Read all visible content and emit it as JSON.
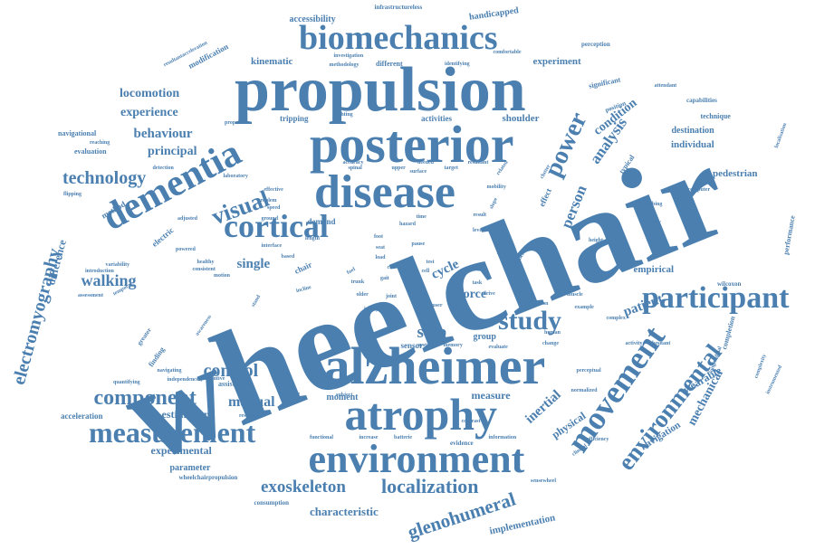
{
  "color": "#4a7fb0",
  "words": [
    {
      "text": "wheelchair",
      "weight": 100
    },
    {
      "text": "propulsion",
      "weight": 70
    },
    {
      "text": "posterior",
      "weight": 62
    },
    {
      "text": "alzheimer",
      "weight": 58
    },
    {
      "text": "disease",
      "weight": 55
    },
    {
      "text": "atrophy",
      "weight": 50
    },
    {
      "text": "dementia",
      "weight": 45
    },
    {
      "text": "environment",
      "weight": 45
    },
    {
      "text": "biomechanics",
      "weight": 40
    },
    {
      "text": "cortical",
      "weight": 38
    },
    {
      "text": "movement",
      "weight": 38
    },
    {
      "text": "participant",
      "weight": 35
    },
    {
      "text": "measurement",
      "weight": 33
    },
    {
      "text": "study",
      "weight": 30
    },
    {
      "text": "power",
      "weight": 28
    },
    {
      "text": "environmental",
      "weight": 27
    },
    {
      "text": "visual",
      "weight": 26
    },
    {
      "text": "component",
      "weight": 24
    },
    {
      "text": "localization",
      "weight": 22
    },
    {
      "text": "glenohumeral",
      "weight": 21
    },
    {
      "text": "electromyography",
      "weight": 20
    },
    {
      "text": "control",
      "weight": 20
    },
    {
      "text": "technology",
      "weight": 20
    },
    {
      "text": "exoskeleton",
      "weight": 19
    },
    {
      "text": "step",
      "weight": 19
    },
    {
      "text": "walking",
      "weight": 17
    },
    {
      "text": "analysis",
      "weight": 17
    },
    {
      "text": "person",
      "weight": 17
    },
    {
      "text": "manual",
      "weight": 16
    },
    {
      "text": "behaviour",
      "weight": 15
    },
    {
      "text": "single",
      "weight": 15
    },
    {
      "text": "cycle",
      "weight": 15
    },
    {
      "text": "force",
      "weight": 14
    },
    {
      "text": "patient",
      "weight": 15
    },
    {
      "text": "mechanical",
      "weight": 14
    },
    {
      "text": "inertial",
      "weight": 15
    },
    {
      "text": "locomotion",
      "weight": 14
    },
    {
      "text": "experience",
      "weight": 14
    },
    {
      "text": "principal",
      "weight": 14
    },
    {
      "text": "condition",
      "weight": 14
    },
    {
      "text": "characteristic",
      "weight": 13
    },
    {
      "text": "experimental",
      "weight": 12
    },
    {
      "text": "measure",
      "weight": 12
    },
    {
      "text": "difference",
      "weight": 12
    },
    {
      "text": "wearable",
      "weight": 12
    },
    {
      "text": "estimation",
      "weight": 12
    },
    {
      "text": "physical",
      "weight": 12
    },
    {
      "text": "kinematic",
      "weight": 11
    },
    {
      "text": "experiment",
      "weight": 11
    },
    {
      "text": "navigation",
      "weight": 11
    },
    {
      "text": "implementation",
      "weight": 11
    },
    {
      "text": "empirical",
      "weight": 11
    },
    {
      "text": "pedestrian",
      "weight": 11
    },
    {
      "text": "individual",
      "weight": 11
    },
    {
      "text": "shoulder",
      "weight": 11
    },
    {
      "text": "destination",
      "weight": 10
    },
    {
      "text": "accessibility",
      "weight": 10
    },
    {
      "text": "handicapped",
      "weight": 10
    },
    {
      "text": "parameter",
      "weight": 10
    },
    {
      "text": "moment",
      "weight": 10
    },
    {
      "text": "group",
      "weight": 10
    },
    {
      "text": "sensor",
      "weight": 9
    },
    {
      "text": "chair",
      "weight": 9
    },
    {
      "text": "acceleration",
      "weight": 9
    },
    {
      "text": "modification",
      "weight": 9
    },
    {
      "text": "method",
      "weight": 9
    },
    {
      "text": "electric",
      "weight": 9
    },
    {
      "text": "effect",
      "weight": 9
    },
    {
      "text": "demand",
      "weight": 9
    },
    {
      "text": "activities",
      "weight": 9
    },
    {
      "text": "tripping",
      "weight": 9
    },
    {
      "text": "evaluation",
      "weight": 8
    },
    {
      "text": "navigational",
      "weight": 8
    },
    {
      "text": "assistive",
      "weight": 8
    },
    {
      "text": "different",
      "weight": 8
    },
    {
      "text": "significant",
      "weight": 8
    },
    {
      "text": "technique",
      "weight": 8
    },
    {
      "text": "performance",
      "weight": 8
    },
    {
      "text": "completion",
      "weight": 8
    },
    {
      "text": "typical",
      "weight": 8
    },
    {
      "text": "finding",
      "weight": 8
    },
    {
      "text": "evidence",
      "weight": 7
    },
    {
      "text": "consumption",
      "weight": 7
    },
    {
      "text": "infrastructureless",
      "weight": 7
    },
    {
      "text": "perception",
      "weight": 7
    },
    {
      "text": "position",
      "weight": 7
    },
    {
      "text": "capabilities",
      "weight": 7
    },
    {
      "text": "computer",
      "weight": 6
    },
    {
      "text": "wilcoxon",
      "weight": 7
    },
    {
      "text": "wheelchairpropulsion",
      "weight": 7
    },
    {
      "text": "complexity",
      "weight": 6
    },
    {
      "text": "greater",
      "weight": 7
    },
    {
      "text": "batterie",
      "weight": 6
    },
    {
      "text": "motion",
      "weight": 6
    },
    {
      "text": "target",
      "weight": 6
    },
    {
      "text": "upper",
      "weight": 6
    },
    {
      "text": "related",
      "weight": 6
    },
    {
      "text": "healthy",
      "weight": 6
    },
    {
      "text": "joint",
      "weight": 6
    },
    {
      "text": "incline",
      "weight": 6
    },
    {
      "text": "level",
      "weight": 6
    },
    {
      "text": "time",
      "weight": 6
    },
    {
      "text": "task",
      "weight": 6
    },
    {
      "text": "clutter",
      "weight": 6
    },
    {
      "text": "assist",
      "weight": 6
    },
    {
      "text": "change",
      "weight": 6
    },
    {
      "text": "slope",
      "weight": 6
    },
    {
      "text": "flipping",
      "weight": 6
    },
    {
      "text": "reaching",
      "weight": 6
    },
    {
      "text": "speed",
      "weight": 5
    },
    {
      "text": "ground",
      "weight": 5
    },
    {
      "text": "foot",
      "weight": 5
    },
    {
      "text": "seat",
      "weight": 5
    },
    {
      "text": "load",
      "weight": 5
    },
    {
      "text": "cue",
      "weight": 5
    },
    {
      "text": "result",
      "weight": 5
    },
    {
      "text": "injury",
      "weight": 5
    },
    {
      "text": "lighting",
      "weight": 5
    },
    {
      "text": "independence",
      "weight": 5
    },
    {
      "text": "resultantacceleration",
      "weight": 4
    },
    {
      "text": "localisation",
      "weight": 4
    },
    {
      "text": "vision",
      "weight": 4
    },
    {
      "text": "human",
      "weight": 4
    },
    {
      "text": "stand",
      "weight": 4
    },
    {
      "text": "fuel",
      "weight": 4
    },
    {
      "text": "spinal",
      "weight": 4
    },
    {
      "text": "shadow",
      "weight": 4
    },
    {
      "text": "muscle",
      "weight": 4
    },
    {
      "text": "awareness",
      "weight": 4
    },
    {
      "text": "quantifying",
      "weight": 4
    },
    {
      "text": "navigating",
      "weight": 4
    },
    {
      "text": "response",
      "weight": 4
    },
    {
      "text": "contrast",
      "weight": 4
    },
    {
      "text": "functional",
      "weight": 4
    },
    {
      "text": "increase",
      "weight": 4
    },
    {
      "text": "subject",
      "weight": 4
    },
    {
      "text": "information",
      "weight": 4
    },
    {
      "text": "sensewheel",
      "weight": 4
    },
    {
      "text": "clinical",
      "weight": 4
    },
    {
      "text": "instrumented",
      "weight": 4
    },
    {
      "text": "height",
      "weight": 4
    },
    {
      "text": "climbing",
      "weight": 3
    },
    {
      "text": "efficiency",
      "weight": 3
    },
    {
      "text": "activity",
      "weight": 3
    },
    {
      "text": "hesitant",
      "weight": 3
    },
    {
      "text": "complex",
      "weight": 4
    },
    {
      "text": "example",
      "weight": 3
    },
    {
      "text": "gait",
      "weight": 3
    },
    {
      "text": "trunk",
      "weight": 3
    },
    {
      "text": "based",
      "weight": 4
    },
    {
      "text": "detection",
      "weight": 3
    },
    {
      "text": "propelled",
      "weight": 3
    },
    {
      "text": "attendant",
      "weight": 3
    },
    {
      "text": "variability",
      "weight": 3
    },
    {
      "text": "introduction",
      "weight": 3
    },
    {
      "text": "assessment",
      "weight": 3
    },
    {
      "text": "temporal",
      "weight": 4
    },
    {
      "text": "powered",
      "weight": 3
    },
    {
      "text": "adjusted",
      "weight": 3
    },
    {
      "text": "problem",
      "weight": 3
    },
    {
      "text": "effective",
      "weight": 3
    },
    {
      "text": "laboratory",
      "weight": 3
    },
    {
      "text": "comfortable",
      "weight": 3
    },
    {
      "text": "investigation",
      "weight": 3
    },
    {
      "text": "methodology",
      "weight": 3
    },
    {
      "text": "identifying",
      "weight": 3
    },
    {
      "text": "accuracy",
      "weight": 3
    },
    {
      "text": "needed",
      "weight": 3
    },
    {
      "text": "surface",
      "weight": 3
    },
    {
      "text": "resultant",
      "weight": 3
    },
    {
      "text": "mobility",
      "weight": 3
    },
    {
      "text": "kinetic",
      "weight": 3
    },
    {
      "text": "deficit",
      "weight": 3
    },
    {
      "text": "velocity",
      "weight": 3
    },
    {
      "text": "rank",
      "weight": 3
    },
    {
      "text": "user",
      "weight": 3
    },
    {
      "text": "drive",
      "weight": 3
    },
    {
      "text": "older",
      "weight": 3
    },
    {
      "text": "system",
      "weight": 3
    },
    {
      "text": "memory",
      "weight": 3
    },
    {
      "text": "evaluate",
      "weight": 3
    },
    {
      "text": "design",
      "weight": 3
    },
    {
      "text": "health",
      "weight": 3
    },
    {
      "text": "calculate",
      "weight": 3
    },
    {
      "text": "preventive",
      "weight": 3
    },
    {
      "text": "perceptual",
      "weight": 3
    },
    {
      "text": "normalized",
      "weight": 3
    },
    {
      "text": "longitudinal",
      "weight": 3
    },
    {
      "text": "hazard",
      "weight": 3
    },
    {
      "text": "length",
      "weight": 3
    },
    {
      "text": "pause",
      "weight": 3
    },
    {
      "text": "test",
      "weight": 3
    },
    {
      "text": "cell",
      "weight": 3
    },
    {
      "text": "consistent",
      "weight": 3
    },
    {
      "text": "interface",
      "weight": 3
    }
  ]
}
